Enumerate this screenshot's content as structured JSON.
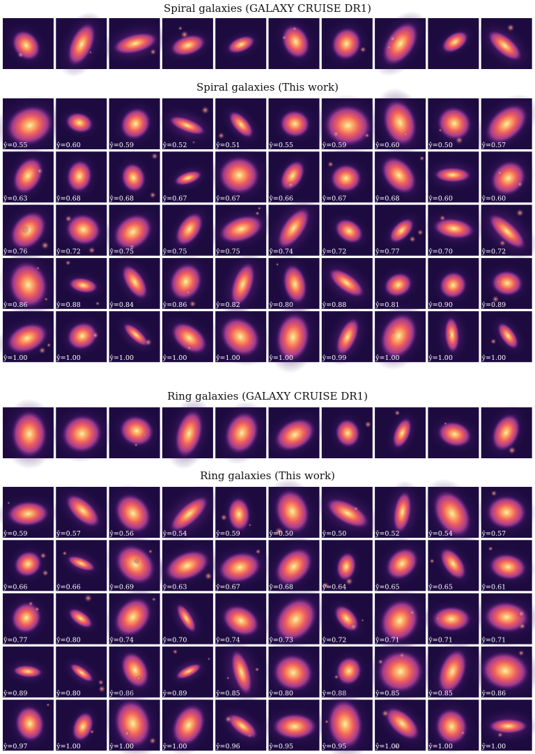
{
  "sections": [
    {
      "title": "Spiral galaxies (GALAXY CRUISE DR1)"
    },
    {
      "title": "Spiral galaxies (This work)",
      "labels": [
        [
          "ŷ=0.55",
          "ŷ=0.60",
          "ŷ=0.59",
          "ŷ=0.52",
          "ŷ=0.51",
          "ŷ=0.55",
          "ŷ=0.59",
          "ŷ=0.60",
          "ŷ=0.50",
          "ŷ=0.57"
        ],
        [
          "ŷ=0.63",
          "ŷ=0.68",
          "ŷ=0.68",
          "ŷ=0.67",
          "ŷ=0.67",
          "ŷ=0.66",
          "ŷ=0.67",
          "ŷ=0.68",
          "ŷ=0.60",
          "ŷ=0.60"
        ],
        [
          "ŷ=0.76",
          "ŷ=0.72",
          "ŷ=0.75",
          "ŷ=0.75",
          "ŷ=0.75",
          "ŷ=0.74",
          "ŷ=0.72",
          "ŷ=0.77",
          "ŷ=0.70",
          "ŷ=0.72"
        ],
        [
          "ŷ=0.86",
          "ŷ=0.88",
          "ŷ=0.84",
          "ŷ=0.86",
          "ŷ=0.82",
          "ŷ=0.80",
          "ŷ=0.88",
          "ŷ=0.81",
          "ŷ=0.90",
          "ŷ=0.89"
        ],
        [
          "ŷ=1.00",
          "ŷ=1.00",
          "ŷ=1.00",
          "ŷ=1.00",
          "ŷ=1.00",
          "ŷ=1.00",
          "ŷ=0.99",
          "ŷ=1.00",
          "ŷ=1.00",
          "ŷ=1.00"
        ]
      ]
    },
    {
      "title": "Ring galaxies (GALAXY CRUISE DR1)"
    },
    {
      "title": "Ring galaxies (This work)",
      "labels": [
        [
          "ŷ=0.59",
          "ŷ=0.57",
          "ŷ=0.56",
          "ŷ=0.54",
          "ŷ=0.59",
          "ŷ=0.50",
          "ŷ=0.50",
          "ŷ=0.52",
          "ŷ=0.54",
          "ŷ=0.57"
        ],
        [
          "ŷ=0.66",
          "ŷ=0.66",
          "ŷ=0.69",
          "ŷ=0.63",
          "ŷ=0.67",
          "ŷ=0.68",
          "ŷ=0.64",
          "ŷ=0.65",
          "ŷ=0.65",
          "ŷ=0.61"
        ],
        [
          "ŷ=0.77",
          "ŷ=0.80",
          "ŷ=0.74",
          "ŷ=0.70",
          "ŷ=0.74",
          "ŷ=0.73",
          "ŷ=0.72",
          "ŷ=0.71",
          "ŷ=0.71",
          "ŷ=0.71"
        ],
        [
          "ŷ=0.89",
          "ŷ=0.80",
          "ŷ=0.86",
          "ŷ=0.89",
          "ŷ=0.85",
          "ŷ=0.80",
          "ŷ=0.88",
          "ŷ=0.85",
          "ŷ=0.85",
          "ŷ=0.86"
        ],
        [
          "ŷ=0.97",
          "ŷ=1.00",
          "ŷ=1.00",
          "ŷ=1.00",
          "ŷ=0.96",
          "ŷ=0.95",
          "ŷ=0.95",
          "ŷ=1.00",
          "ŷ=1.00",
          "ŷ=1.00"
        ]
      ]
    }
  ]
}
